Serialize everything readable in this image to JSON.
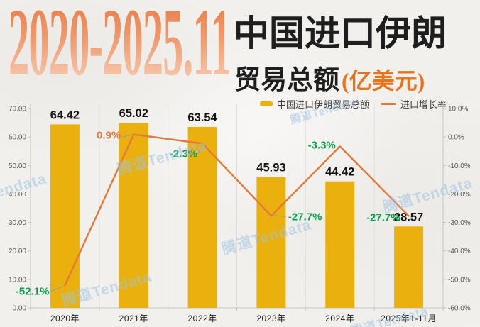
{
  "header": {
    "date_range": "2020-2025.11",
    "title_line1": "中国进口伊朗",
    "title_line2": "贸易总额",
    "unit": "(亿美元)"
  },
  "legend": {
    "items": [
      {
        "label": "中国进口伊朗贸易总额",
        "swatch": "bar"
      },
      {
        "label": "进口增长率",
        "swatch": "line"
      }
    ]
  },
  "watermark_text": "腾道Tendata",
  "colors": {
    "bar": "#E9B00E",
    "line": "#E5793A",
    "green_label": "#09A04B",
    "orange_label": "#E5793A",
    "value_label": "#141414",
    "axis_line": "#C6C4C1",
    "separator": "#E1DFDB",
    "axis_text": "#5B5B5B",
    "x_label": "#1F1F1F",
    "leader": "#9B9B9B",
    "watermark": "#9FC4E3",
    "title_orange": "#E8731F"
  },
  "chart_data": {
    "type": "bar+line",
    "title": "2020-2025.11 中国进口伊朗贸易总额(亿美元)",
    "categories": [
      "2020年",
      "2021年",
      "2022年",
      "2023年",
      "2024年",
      "2025年1-11月"
    ],
    "series": [
      {
        "name": "中国进口伊朗贸易总额",
        "type": "bar",
        "axis": "left",
        "unit": "亿美元",
        "values": [
          64.42,
          65.02,
          63.54,
          45.93,
          44.42,
          28.57
        ],
        "value_labels": [
          "64.42",
          "65.02",
          "63.54",
          "45.93",
          "44.42",
          "28.57"
        ]
      },
      {
        "name": "进口增长率",
        "type": "line",
        "axis": "right",
        "unit": "%",
        "values": [
          -52.1,
          0.9,
          -2.3,
          -27.7,
          -3.3,
          -27.7
        ],
        "point_labels": [
          "-52.1%",
          "0.9%",
          "-2.3%",
          "-27.7%",
          "-3.3%",
          "-27.7%"
        ],
        "point_label_colors": [
          "green",
          "orange",
          "green",
          "green",
          "green",
          "green"
        ]
      }
    ],
    "left_axis": {
      "min": 0,
      "max": 70,
      "ticks": [
        "0.00",
        "10.00",
        "20.00",
        "30.00",
        "40.00",
        "50.00",
        "60.00",
        "70.00"
      ]
    },
    "right_axis": {
      "min": -60,
      "max": 10,
      "ticks": [
        "-60.0%",
        "-50.0%",
        "-40.0%",
        "-30.0%",
        "-20.0%",
        "-10.0%",
        "0.0%",
        "10.0%"
      ]
    },
    "grid": {
      "horizontal": false,
      "vertical_separators": true
    },
    "legend_position": "top-right"
  }
}
